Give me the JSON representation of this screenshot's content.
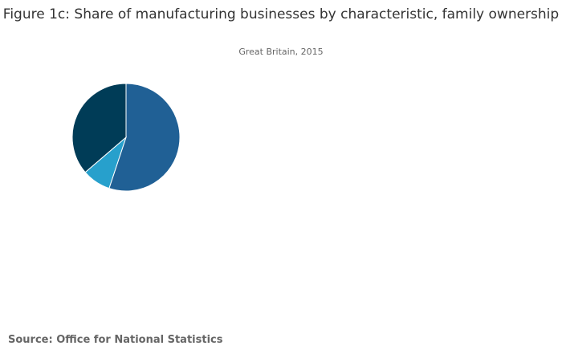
{
  "chart_data": {
    "type": "pie",
    "title": "Figure 1c: Share of manufacturing businesses by characteristic, family ownership",
    "subtitle": "Great Britain, 2015",
    "values": [
      55.1,
      8.6,
      36.3
    ],
    "colors": [
      "#206095",
      "#27a0cc",
      "#003c57"
    ],
    "start": "12 o'clock, clockwise",
    "legend": "none"
  },
  "footer": {
    "source": "Source: Office for National Statistics"
  }
}
